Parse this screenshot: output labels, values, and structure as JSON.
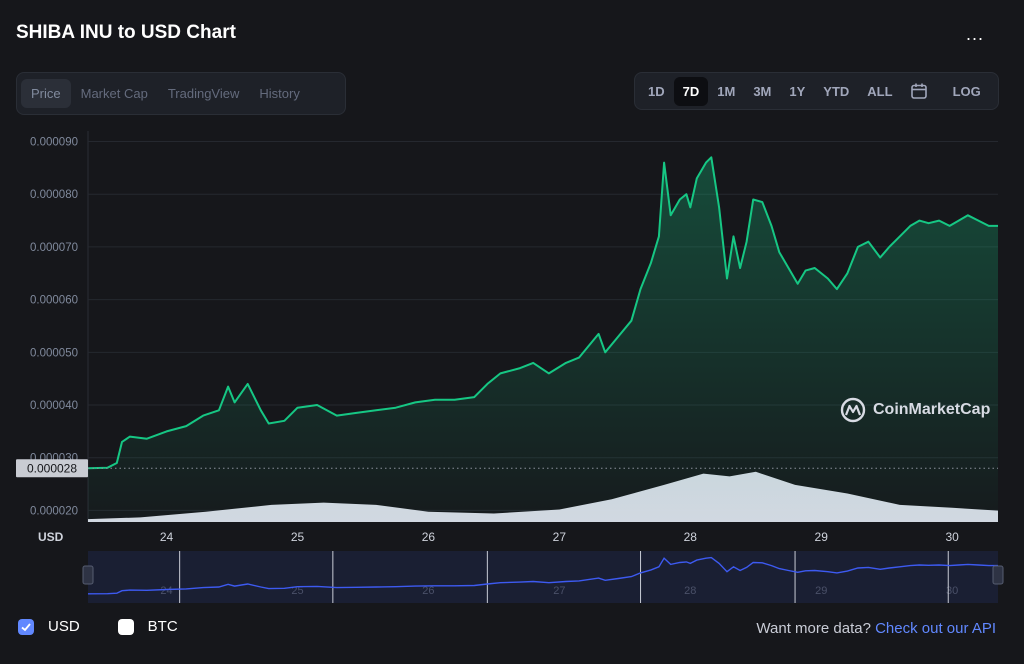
{
  "header": {
    "title": "SHIBA INU to USD Chart",
    "more_label": "..."
  },
  "tabs": [
    {
      "label": "Price",
      "active": true
    },
    {
      "label": "Market Cap",
      "active": false
    },
    {
      "label": "TradingView",
      "active": false
    },
    {
      "label": "History",
      "active": false
    }
  ],
  "ranges": [
    {
      "label": "1D",
      "active": false
    },
    {
      "label": "7D",
      "active": true
    },
    {
      "label": "1M",
      "active": false
    },
    {
      "label": "3M",
      "active": false
    },
    {
      "label": "1Y",
      "active": false
    },
    {
      "label": "YTD",
      "active": false
    },
    {
      "label": "ALL",
      "active": false
    }
  ],
  "calendar_icon": "calendar-icon",
  "log_label": "LOG",
  "watermark": {
    "text": "CoinMarketCap",
    "icon": "coinmarketcap-logo-icon"
  },
  "currency_options": [
    {
      "label": "USD",
      "checked": true
    },
    {
      "label": "BTC",
      "checked": false
    }
  ],
  "footer": {
    "prompt": "Want more data?",
    "link": "Check out our API"
  },
  "colors": {
    "line": "#16c784",
    "volume": "#dfe3ee",
    "navigator": "#3d5af1",
    "accent": "#6188ff",
    "background": "#16171b"
  },
  "chart_data": {
    "type": "area",
    "ylabel": "USD",
    "yticks": [
      "0.000020",
      "0.000030",
      "0.000040",
      "0.000050",
      "0.000060",
      "0.000070",
      "0.000080",
      "0.000090"
    ],
    "ylim": [
      1.78e-05,
      9.2e-05
    ],
    "xticks": [
      "24",
      "25",
      "26",
      "27",
      "28",
      "29",
      "30"
    ],
    "xlim": [
      23.4,
      30.35
    ],
    "current_price_label": "0.000028",
    "current_price": 2.8e-05,
    "grid": true,
    "series": [
      {
        "values": [
          [
            23.4,
            2.8e-05
          ],
          [
            23.55,
            2.81e-05
          ],
          [
            23.62,
            2.9e-05
          ],
          [
            23.66,
            3.3e-05
          ],
          [
            23.72,
            3.4e-05
          ],
          [
            23.85,
            3.36e-05
          ],
          [
            24.0,
            3.5e-05
          ],
          [
            24.15,
            3.6e-05
          ],
          [
            24.28,
            3.8e-05
          ],
          [
            24.4,
            3.9e-05
          ],
          [
            24.47,
            4.35e-05
          ],
          [
            24.52,
            4.05e-05
          ],
          [
            24.62,
            4.4e-05
          ],
          [
            24.72,
            3.9e-05
          ],
          [
            24.78,
            3.65e-05
          ],
          [
            24.9,
            3.7e-05
          ],
          [
            25.0,
            3.95e-05
          ],
          [
            25.15,
            4e-05
          ],
          [
            25.3,
            3.8e-05
          ],
          [
            25.45,
            3.85e-05
          ],
          [
            25.6,
            3.9e-05
          ],
          [
            25.75,
            3.95e-05
          ],
          [
            25.9,
            4.05e-05
          ],
          [
            26.05,
            4.1e-05
          ],
          [
            26.2,
            4.1e-05
          ],
          [
            26.35,
            4.15e-05
          ],
          [
            26.45,
            4.4e-05
          ],
          [
            26.55,
            4.6e-05
          ],
          [
            26.7,
            4.7e-05
          ],
          [
            26.8,
            4.8e-05
          ],
          [
            26.92,
            4.6e-05
          ],
          [
            27.05,
            4.8e-05
          ],
          [
            27.15,
            4.9e-05
          ],
          [
            27.3,
            5.35e-05
          ],
          [
            27.35,
            5e-05
          ],
          [
            27.45,
            5.3e-05
          ],
          [
            27.55,
            5.6e-05
          ],
          [
            27.62,
            6.2e-05
          ],
          [
            27.7,
            6.7e-05
          ],
          [
            27.76,
            7.2e-05
          ],
          [
            27.8,
            8.6e-05
          ],
          [
            27.85,
            7.6e-05
          ],
          [
            27.92,
            7.9e-05
          ],
          [
            27.97,
            8e-05
          ],
          [
            28.0,
            7.75e-05
          ],
          [
            28.05,
            8.3e-05
          ],
          [
            28.12,
            8.6e-05
          ],
          [
            28.16,
            8.7e-05
          ],
          [
            28.22,
            7.75e-05
          ],
          [
            28.28,
            6.4e-05
          ],
          [
            28.33,
            7.2e-05
          ],
          [
            28.38,
            6.6e-05
          ],
          [
            28.43,
            7.1e-05
          ],
          [
            28.48,
            7.9e-05
          ],
          [
            28.55,
            7.85e-05
          ],
          [
            28.62,
            7.4e-05
          ],
          [
            28.68,
            6.9e-05
          ],
          [
            28.75,
            6.6e-05
          ],
          [
            28.82,
            6.3e-05
          ],
          [
            28.88,
            6.55e-05
          ],
          [
            28.95,
            6.6e-05
          ],
          [
            29.05,
            6.4e-05
          ],
          [
            29.12,
            6.2e-05
          ],
          [
            29.2,
            6.5e-05
          ],
          [
            29.28,
            7e-05
          ],
          [
            29.36,
            7.1e-05
          ],
          [
            29.45,
            6.8e-05
          ],
          [
            29.52,
            7e-05
          ],
          [
            29.6,
            7.2e-05
          ],
          [
            29.68,
            7.4e-05
          ],
          [
            29.75,
            7.5e-05
          ],
          [
            29.82,
            7.45e-05
          ],
          [
            29.9,
            7.5e-05
          ],
          [
            29.98,
            7.4e-05
          ],
          [
            30.05,
            7.5e-05
          ],
          [
            30.12,
            7.6e-05
          ],
          [
            30.2,
            7.5e-05
          ],
          [
            30.28,
            7.4e-05
          ],
          [
            30.35,
            7.4e-05
          ]
        ]
      }
    ],
    "volume": [
      [
        23.4,
        0.05
      ],
      [
        23.8,
        0.08
      ],
      [
        24.3,
        0.18
      ],
      [
        24.8,
        0.3
      ],
      [
        25.2,
        0.34
      ],
      [
        25.6,
        0.3
      ],
      [
        26.0,
        0.18
      ],
      [
        26.5,
        0.15
      ],
      [
        27.0,
        0.22
      ],
      [
        27.4,
        0.4
      ],
      [
        27.8,
        0.65
      ],
      [
        28.1,
        0.85
      ],
      [
        28.3,
        0.8
      ],
      [
        28.5,
        0.88
      ],
      [
        28.8,
        0.65
      ],
      [
        29.2,
        0.5
      ],
      [
        29.6,
        0.3
      ],
      [
        30.0,
        0.25
      ],
      [
        30.35,
        0.2
      ]
    ]
  }
}
